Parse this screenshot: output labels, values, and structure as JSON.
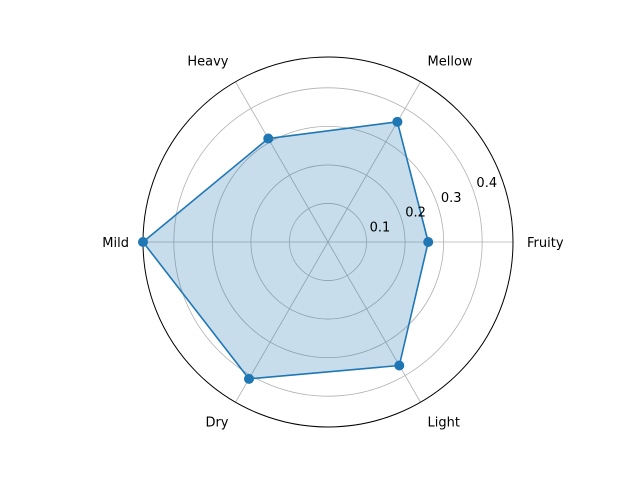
{
  "chart_data": {
    "type": "radar",
    "categories": [
      "Fruity",
      "Mellow",
      "Heavy",
      "Mild",
      "Dry",
      "Light"
    ],
    "series": [
      {
        "values": [
          0.26,
          0.36,
          0.31,
          0.48,
          0.41,
          0.37
        ],
        "color": "#1f77b4",
        "fill_color": "#1f77b4",
        "fill_opacity": 0.25,
        "marker": "circle"
      }
    ],
    "rlim": [
      0,
      0.48
    ],
    "radial_ticks": [
      0.1,
      0.2,
      0.3,
      0.4
    ],
    "radial_tick_labels": [
      "0.1",
      "0.2",
      "0.3",
      "0.4"
    ],
    "radial_tick_label_angle_deg": 22.5,
    "grid": true,
    "grid_color": "#b0b0b0",
    "start_angle_deg": 0,
    "direction": "counterclockwise",
    "title": "",
    "legend": false
  }
}
